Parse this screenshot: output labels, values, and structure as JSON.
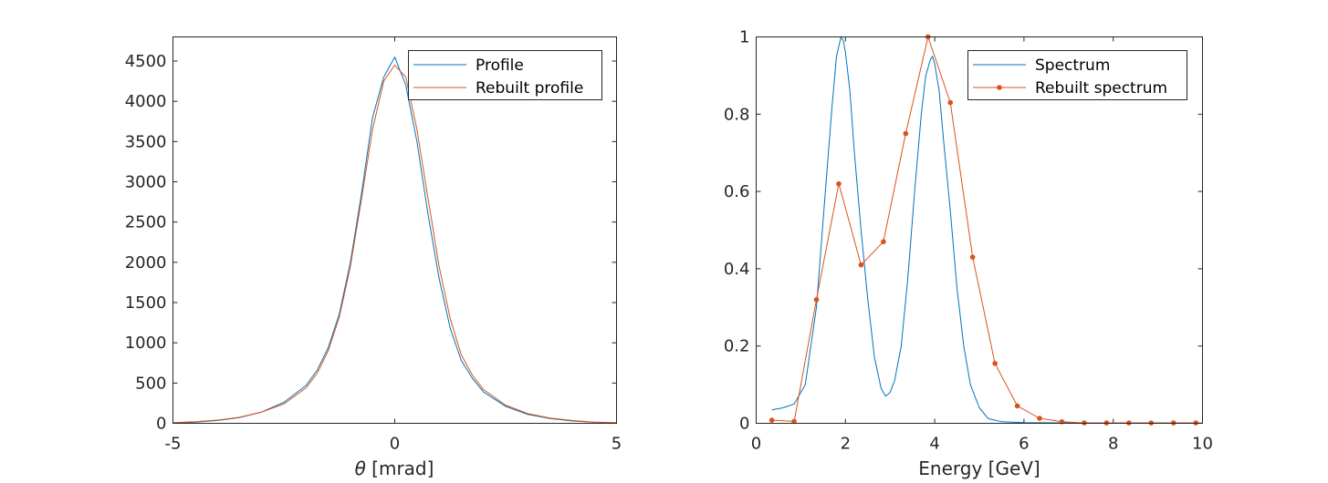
{
  "chart_data": [
    {
      "type": "line",
      "title": "",
      "xlabel_symbol": "θ",
      "xlabel_rest": " [mrad]",
      "ylabel": "",
      "xlim": [
        -5,
        5
      ],
      "ylim": [
        0,
        4800
      ],
      "xticks": [
        "-5",
        "0",
        "5"
      ],
      "yticks": [
        "0",
        "500",
        "1000",
        "1500",
        "2000",
        "2500",
        "3000",
        "3500",
        "4000",
        "4500"
      ],
      "legend_position": "top-right",
      "series": [
        {
          "name": "Profile",
          "color": "#0072BD",
          "x": [
            -5,
            -4.5,
            -4,
            -3.5,
            -3,
            -2.5,
            -2,
            -1.75,
            -1.5,
            -1.25,
            -1,
            -0.75,
            -0.5,
            -0.25,
            0,
            0.25,
            0.5,
            0.75,
            1,
            1.25,
            1.5,
            1.75,
            2,
            2.5,
            3,
            3.5,
            4,
            4.5,
            5
          ],
          "y": [
            5,
            15,
            35,
            70,
            140,
            260,
            470,
            660,
            940,
            1360,
            2000,
            2850,
            3800,
            4300,
            4550,
            4200,
            3500,
            2600,
            1800,
            1180,
            780,
            560,
            390,
            210,
            110,
            60,
            30,
            12,
            5
          ]
        },
        {
          "name": "Rebuilt profile",
          "color": "#D95319",
          "x": [
            -5,
            -4.5,
            -4,
            -3.5,
            -3,
            -2.5,
            -2,
            -1.75,
            -1.5,
            -1.25,
            -1,
            -0.75,
            -0.5,
            -0.25,
            0,
            0.25,
            0.5,
            0.75,
            1,
            1.25,
            1.5,
            1.75,
            2,
            2.5,
            3,
            3.5,
            4,
            4.5,
            5
          ],
          "y": [
            8,
            20,
            40,
            75,
            140,
            240,
            440,
            620,
            900,
            1320,
            1950,
            2780,
            3650,
            4250,
            4450,
            4300,
            3650,
            2800,
            1950,
            1300,
            850,
            600,
            420,
            225,
            120,
            65,
            35,
            15,
            8
          ]
        }
      ]
    },
    {
      "type": "line",
      "title": "",
      "xlabel": "Energy [GeV]",
      "ylabel": "",
      "xlim": [
        0,
        10
      ],
      "ylim": [
        0,
        1
      ],
      "xticks": [
        "0",
        "2",
        "4",
        "6",
        "8",
        "10"
      ],
      "yticks": [
        "0",
        "0.2",
        "0.4",
        "0.6",
        "0.8",
        "1"
      ],
      "legend_position": "top-right",
      "series": [
        {
          "name": "Spectrum",
          "color": "#0072BD",
          "x": [
            0.35,
            0.6,
            0.85,
            1.1,
            1.35,
            1.55,
            1.7,
            1.8,
            1.9,
            1.95,
            2.0,
            2.1,
            2.2,
            2.35,
            2.5,
            2.65,
            2.8,
            2.9,
            3.0,
            3.1,
            3.25,
            3.4,
            3.55,
            3.7,
            3.8,
            3.9,
            3.95,
            4.0,
            4.1,
            4.2,
            4.35,
            4.5,
            4.65,
            4.8,
            5.0,
            5.2,
            5.5,
            6.0,
            7.0,
            8.0,
            9.0,
            10.0
          ],
          "y": [
            0.035,
            0.04,
            0.05,
            0.1,
            0.3,
            0.6,
            0.82,
            0.95,
            1.0,
            0.99,
            0.96,
            0.86,
            0.7,
            0.5,
            0.32,
            0.17,
            0.09,
            0.07,
            0.08,
            0.11,
            0.2,
            0.38,
            0.6,
            0.8,
            0.9,
            0.94,
            0.95,
            0.93,
            0.86,
            0.73,
            0.55,
            0.35,
            0.2,
            0.1,
            0.04,
            0.012,
            0.004,
            0.002,
            0.001,
            0.001,
            0.001,
            0.001
          ]
        },
        {
          "name": "Rebuilt spectrum",
          "color": "#D95319",
          "x": [
            0.35,
            0.85,
            1.35,
            1.85,
            2.35,
            2.85,
            3.35,
            3.85,
            4.35,
            4.85,
            5.35,
            5.85,
            6.35,
            6.85,
            7.35,
            7.85,
            8.35,
            8.85,
            9.35,
            9.85
          ],
          "y": [
            0.008,
            0.005,
            0.32,
            0.62,
            0.41,
            0.47,
            0.75,
            1.0,
            0.83,
            0.43,
            0.155,
            0.045,
            0.013,
            0.004,
            0.001,
            0.001,
            0.001,
            0.001,
            0.001,
            0.001
          ]
        }
      ]
    }
  ]
}
